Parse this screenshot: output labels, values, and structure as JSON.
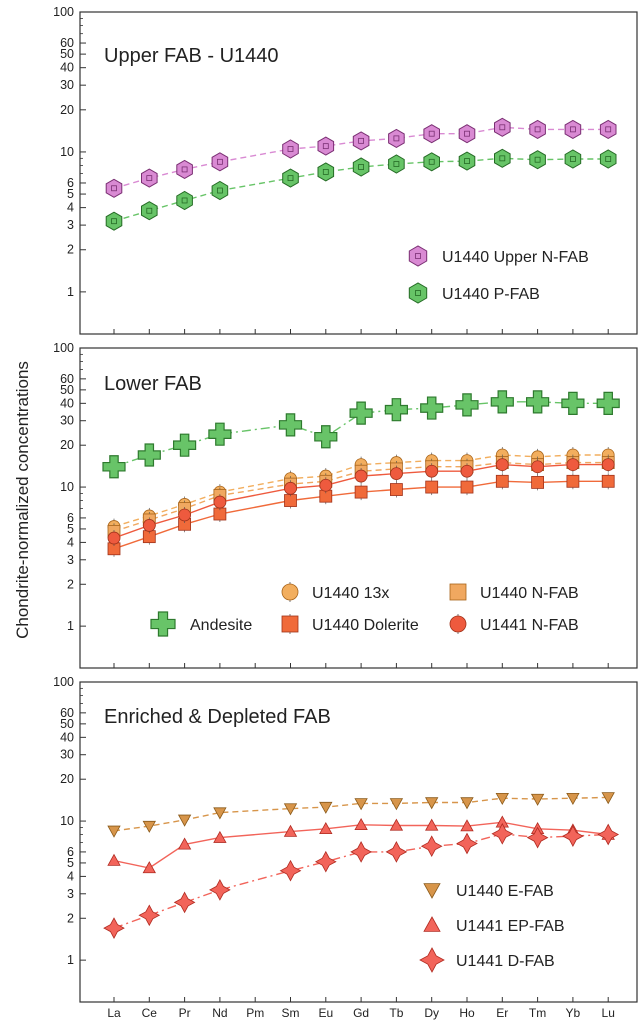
{
  "figure": {
    "ylabel": "Chondrite-normalized concentrations",
    "elements": [
      "La",
      "Ce",
      "Pr",
      "Nd",
      "Pm",
      "Sm",
      "Eu",
      "Gd",
      "Tb",
      "Dy",
      "Ho",
      "Er",
      "Tm",
      "Yb",
      "Lu"
    ],
    "ytick_labels": [
      "1",
      "2",
      "3",
      "4",
      "5",
      "6",
      "10",
      "20",
      "30",
      "40",
      "50",
      "60",
      "100"
    ],
    "ytick_values": [
      1,
      2,
      3,
      4,
      5,
      6,
      10,
      20,
      30,
      40,
      50,
      60,
      100
    ],
    "yscale": "log",
    "ylim": [
      0.5,
      100
    ]
  },
  "chart_data": [
    {
      "type": "line",
      "title": "Upper FAB - U1440",
      "yscale": "log",
      "ylim": [
        0.5,
        100
      ],
      "legend_position": "right",
      "series": [
        {
          "name": "U1440 Upper N-FAB",
          "color": "#d98ad3",
          "edge": "#7a2f73",
          "marker": "hexagon",
          "line": "dashed",
          "values": [
            5.5,
            6.5,
            7.5,
            8.5,
            null,
            10.5,
            11.0,
            12.0,
            12.5,
            13.5,
            13.5,
            15.0,
            14.5,
            14.5,
            14.5
          ]
        },
        {
          "name": "U1440 P-FAB",
          "color": "#67c467",
          "edge": "#256b25",
          "marker": "hexagon",
          "line": "dashed",
          "values": [
            3.2,
            3.8,
            4.5,
            5.3,
            null,
            6.5,
            7.2,
            7.8,
            8.2,
            8.5,
            8.6,
            9.0,
            8.8,
            8.9,
            8.9
          ]
        }
      ]
    },
    {
      "type": "line",
      "title": "Lower FAB",
      "yscale": "log",
      "ylim": [
        0.5,
        100
      ],
      "legend_position": "bottom",
      "series": [
        {
          "name": "Andesite",
          "color": "#68c468",
          "edge": "#2e7a2e",
          "marker": "cross",
          "line": "dash-dot",
          "values": [
            14,
            17,
            20,
            24,
            null,
            28,
            23,
            34,
            36,
            37,
            39,
            41,
            41,
            40,
            40
          ]
        },
        {
          "name": "U1440 13x",
          "color": "#f2ae5e",
          "edge": "#a8641a",
          "marker": "circle",
          "line": "dashed",
          "values": [
            5.2,
            6.2,
            7.5,
            9.2,
            null,
            11.5,
            12.0,
            14.5,
            15.0,
            15.5,
            15.5,
            17.0,
            16.5,
            17.0,
            17.0
          ]
        },
        {
          "name": "U1440 N-FAB",
          "color": "#f0a860",
          "edge": "#a8641a",
          "marker": "square",
          "line": "dashed",
          "values": [
            4.8,
            5.8,
            7.0,
            8.7,
            null,
            10.5,
            11.0,
            13.0,
            13.5,
            14.0,
            14.0,
            15.0,
            14.5,
            15.0,
            15.0
          ]
        },
        {
          "name": "U1440 Dolerite",
          "color": "#f06a3a",
          "edge": "#a0321a",
          "marker": "square",
          "line": "solid",
          "values": [
            3.6,
            4.4,
            5.4,
            6.4,
            null,
            8.0,
            8.6,
            9.2,
            9.6,
            10.0,
            10.0,
            11.0,
            10.8,
            11.0,
            11.0
          ]
        },
        {
          "name": "U1441 N-FAB",
          "color": "#ee5a3e",
          "edge": "#a0321a",
          "marker": "circle",
          "line": "solid",
          "values": [
            4.3,
            5.3,
            6.3,
            7.8,
            null,
            9.8,
            10.3,
            12.0,
            12.5,
            13.0,
            13.0,
            14.5,
            14.0,
            14.5,
            14.5
          ]
        }
      ]
    },
    {
      "type": "line",
      "title": "Enriched & Depleted FAB",
      "yscale": "log",
      "ylim": [
        0.5,
        100
      ],
      "legend_position": "bottom-right",
      "series": [
        {
          "name": "U1440 E-FAB",
          "color": "#d7954a",
          "edge": "#8a5a1a",
          "marker": "triangle-down",
          "line": "dashed",
          "values": [
            8.5,
            9.2,
            10.2,
            11.5,
            null,
            12.3,
            12.6,
            13.4,
            13.4,
            13.6,
            13.6,
            14.6,
            14.4,
            14.6,
            14.8
          ]
        },
        {
          "name": "U1441 EP-FAB",
          "color": "#f2645a",
          "edge": "#b02a20",
          "marker": "triangle-up",
          "line": "solid",
          "values": [
            5.2,
            4.6,
            6.8,
            7.6,
            null,
            8.4,
            8.8,
            9.4,
            9.3,
            9.3,
            9.2,
            9.8,
            8.8,
            8.6,
            8.0
          ]
        },
        {
          "name": "U1441 D-FAB",
          "color": "#f2645a",
          "edge": "#b02a20",
          "marker": "star4",
          "line": "dash-dot",
          "values": [
            1.7,
            2.1,
            2.6,
            3.2,
            null,
            4.4,
            5.1,
            6.0,
            6.0,
            6.6,
            6.9,
            8.1,
            7.6,
            7.8,
            8.0
          ]
        }
      ]
    }
  ]
}
